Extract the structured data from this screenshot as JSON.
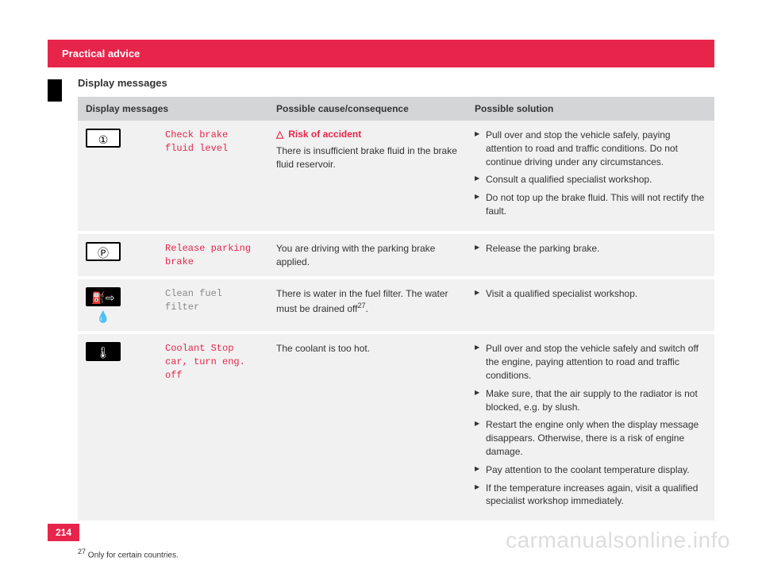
{
  "colors": {
    "accent": "#e7254b",
    "header_bg": "#d4d5d6",
    "row_bg": "#f1f1f1",
    "text": "#333333",
    "watermark": "#dddddd"
  },
  "header": {
    "title": "Practical advice"
  },
  "section": {
    "title": "Display messages"
  },
  "table": {
    "headers": {
      "col1": "Display messages",
      "col2": "Possible cause/consequence",
      "col3": "Possible solution"
    },
    "rows": [
      {
        "icon": {
          "glyph": "①",
          "style": "white",
          "name": "brake-circle-icon"
        },
        "message": "Check brake fluid level",
        "message_color": "red",
        "risk_label": "Risk of accident",
        "cause": "There is insufficient brake fluid in the brake fluid reservoir.",
        "solutions": [
          "Pull over and stop the vehicle safely, paying attention to road and traffic conditions. Do not continue driving under any circumstances.",
          "Consult a qualified specialist workshop.",
          "Do not top up the brake fluid. This will not rectify the fault."
        ]
      },
      {
        "icon": {
          "glyph": "Ⓟ",
          "style": "white",
          "name": "parking-brake-icon"
        },
        "message": "Release parking brake",
        "message_color": "red",
        "cause": "You are driving with the parking brake applied.",
        "solutions": [
          "Release the parking brake."
        ]
      },
      {
        "icon": {
          "glyph": "⛽⇨💧",
          "style": "black",
          "name": "fuel-water-icon"
        },
        "message": "Clean fuel filter",
        "message_color": "gray",
        "cause": "There is water in the fuel filter. The water must be drained off",
        "cause_sup": "27",
        "cause_tail": ".",
        "solutions": [
          "Visit a qualified specialist workshop."
        ]
      },
      {
        "icon": {
          "glyph": "🌡",
          "style": "black",
          "name": "coolant-temp-icon"
        },
        "message": "Coolant Stop car, turn eng. off",
        "message_color": "red",
        "cause": "The coolant is too hot.",
        "solutions": [
          "Pull over and stop the vehicle safely and switch off the engine, paying attention to road and traffic conditions.",
          "Make sure, that the air supply to the radiator is not blocked, e.g. by slush.",
          "Restart the engine only when the display message disappears. Otherwise, there is a risk of engine damage.",
          "Pay attention to the coolant temperature display.",
          "If the temperature increases again, visit a qualified specialist workshop immediately."
        ]
      }
    ]
  },
  "footnote": {
    "num": "27",
    "text": " Only for certain countries."
  },
  "page_number": "214",
  "watermark": "carmanualsonline.info"
}
